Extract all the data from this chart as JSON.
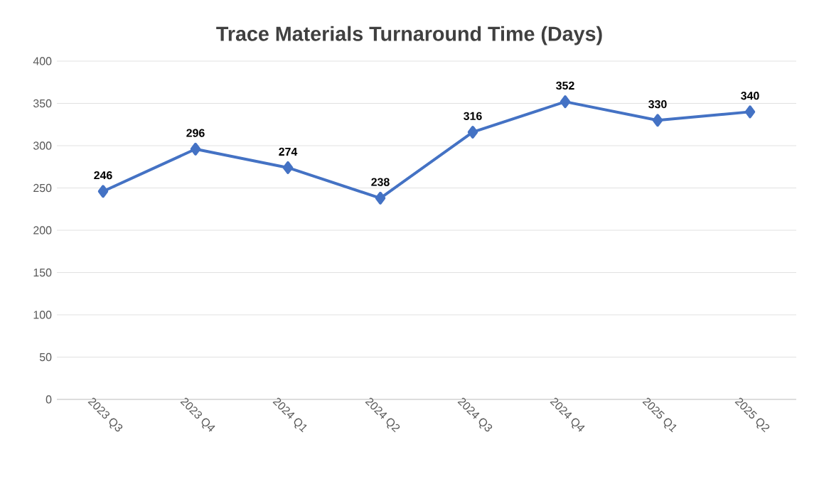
{
  "chart_data": {
    "type": "line",
    "title": "Trace Materials Turnaround Time (Days)",
    "categories": [
      "2023 Q3",
      "2023 Q4",
      "2024 Q1",
      "2024 Q2",
      "2024 Q3",
      "2024 Q4",
      "2025 Q1",
      "2025 Q2"
    ],
    "values": [
      246,
      296,
      274,
      238,
      316,
      352,
      330,
      340
    ],
    "color": "#4472c4",
    "marker": "diamond",
    "data_labels": true,
    "grid": "y",
    "ylim": [
      0,
      400
    ],
    "yticks": [
      0,
      50,
      100,
      150,
      200,
      250,
      300,
      350,
      400
    ]
  }
}
